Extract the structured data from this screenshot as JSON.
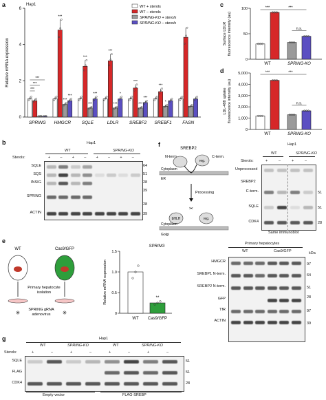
{
  "a": {
    "letter": "a",
    "cell_line": "Hap1",
    "ylabel": "Relative mRNA expression",
    "legend": [
      "WT + sterols",
      "WT – sterols",
      "SPRING-KO + sterols",
      "SPRING-KO – sterols"
    ],
    "colors": [
      "#ffffff",
      "#d62728",
      "#9a9a9a",
      "#5b4fc2"
    ],
    "sig_marks": [
      "***",
      "***",
      "***",
      "***",
      "***",
      "***",
      "***",
      "***",
      "*",
      "***",
      "***",
      "***",
      "***",
      "*"
    ],
    "chart_data": {
      "type": "bar",
      "categories": [
        "SPRING",
        "HMGCR",
        "SQLE",
        "LDLR",
        "SREBF2",
        "SREBF1",
        "FASN"
      ],
      "ylim": [
        0,
        6
      ],
      "yticks": [
        "0",
        "2",
        "4",
        "6"
      ],
      "series": [
        {
          "name": "WT + sterols",
          "values": [
            1.0,
            1.0,
            1.0,
            1.0,
            1.0,
            1.0,
            1.0
          ]
        },
        {
          "name": "WT – sterols",
          "values": [
            0.9,
            4.8,
            2.8,
            3.1,
            1.6,
            1.4,
            4.4
          ]
        },
        {
          "name": "SPRING-KO + sterols",
          "values": [
            0.05,
            0.7,
            0.5,
            0.5,
            0.5,
            0.6,
            0.6
          ]
        },
        {
          "name": "SPRING-KO – sterols",
          "values": [
            0.05,
            0.9,
            1.0,
            1.0,
            0.8,
            0.9,
            1.0
          ]
        }
      ]
    }
  },
  "b": {
    "letter": "b",
    "cell_line": "Hap1",
    "groups": [
      "WT",
      "SPRING-KO"
    ],
    "sterols_label": "Sterols:",
    "signs": [
      "+",
      "–",
      "+",
      "–",
      "+",
      "–",
      "+",
      "–"
    ],
    "rows": [
      "SQLE",
      "SQS",
      "INSIG",
      "SPRING",
      "ACTIN"
    ],
    "markers": [
      "64",
      "51",
      "28",
      "39",
      "28",
      "39"
    ]
  },
  "c": {
    "letter": "c",
    "ylabel": "Surface LDLR fluorescence intensity (au)",
    "xlabels": [
      "WT",
      "SPRING-KO"
    ],
    "sig": [
      "***",
      "***",
      "n.s."
    ],
    "chart_data": {
      "type": "bar",
      "categories": [
        "WT + sterols",
        "WT – sterols",
        "SPRING-KO + sterols",
        "SPRING-KO – sterols"
      ],
      "values": [
        30,
        92,
        33,
        45
      ],
      "ylim": [
        0,
        100
      ],
      "yticks": [
        "0",
        "50",
        "100"
      ]
    }
  },
  "d": {
    "letter": "d",
    "ylabel": "LDL-488 uptake fluorescence intensity (au)",
    "xlabels": [
      "WT",
      "SPRING-KO"
    ],
    "sig": [
      "***",
      "***",
      "n.s."
    ],
    "chart_data": {
      "type": "bar",
      "categories": [
        "WT + sterols",
        "WT – sterols",
        "SPRING-KO + sterols",
        "SPRING-KO – sterols"
      ],
      "values": [
        1200,
        4350,
        1300,
        1650
      ],
      "ylim": [
        0,
        5000
      ],
      "yticks": [
        "0",
        "1,000",
        "2,000",
        "3,000",
        "4,000",
        "5,000"
      ]
    }
  },
  "e": {
    "letter": "e",
    "mouse1": "WT",
    "mouse2": "Cas9/GFP",
    "isolation": "Primary hepatocyte isolation",
    "virus": "SPRING gRNA adenovirus",
    "bar_title": "SPRING",
    "ylabel": "Relative mRNA expression",
    "sig": "**",
    "chart_data": {
      "type": "bar",
      "categories": [
        "WT",
        "Cas9/GFP"
      ],
      "values": [
        1.0,
        0.25
      ],
      "ylim": [
        0,
        1.5
      ],
      "yticks": [
        "0",
        "0.5",
        "1.0",
        "1.5"
      ]
    },
    "blot_title": "Primary hepatocytes",
    "groups": [
      "WT",
      "Cas9/GFP"
    ],
    "rows": [
      "HMGCR",
      "SREBP1 N-term.",
      "SREBP2 N-term.",
      "GFP",
      "TfR",
      "ACTIN"
    ],
    "kda": "kDa",
    "markers": [
      "97",
      "64",
      "51",
      "28",
      "97",
      "39"
    ]
  },
  "f": {
    "letter": "f",
    "srebp2": "SREBP2",
    "nterm": "N-term.",
    "cterm": "C-term.",
    "bhlh": "bHLH",
    "reg": "reg.",
    "cytoplasm": "Cytoplasm",
    "er": "ER",
    "processing": "Processing",
    "golgi": "Golgi",
    "blot_title": "Hap1",
    "groups": [
      "WT",
      "SPRING-KO"
    ],
    "sterols_label": "Sterols:",
    "signs": [
      "+",
      "–",
      "+",
      "–"
    ],
    "unprocessed": "Unprocessed",
    "srebp2_label": "SREBP2",
    "rows": [
      "C-term.",
      "SQLE",
      "CDK4"
    ],
    "markers": [
      "51",
      "51",
      "28"
    ],
    "note": "Same immunoblot"
  },
  "g": {
    "letter": "g",
    "cell_line": "Hap1",
    "groups": [
      "WT",
      "SPRING-KO",
      "WT",
      "SPRING-KO"
    ],
    "sterols_label": "Sterols:",
    "signs": [
      "+",
      "–",
      "+",
      "–",
      "+",
      "–",
      "+",
      "–"
    ],
    "rows": [
      "SQLE",
      "FLAG",
      "CDK4"
    ],
    "markers": [
      "51",
      "51",
      "28"
    ],
    "footer1": "Empty vector",
    "footer2": "FLAG-SREBP"
  }
}
